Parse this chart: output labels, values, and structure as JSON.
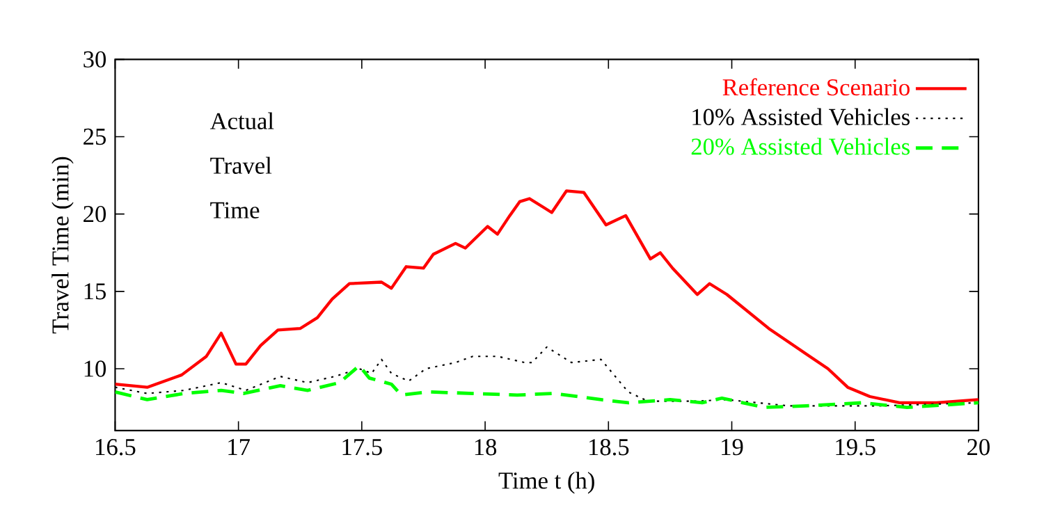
{
  "chart_data": {
    "type": "line",
    "xlabel": "Time t (h)",
    "ylabel": "Travel Time (min)",
    "annotations": [
      "Actual Travel Time"
    ],
    "xlim": [
      16.5,
      20
    ],
    "ylim": [
      6,
      30
    ],
    "xticks": [
      16.5,
      17,
      17.5,
      18,
      18.5,
      19,
      19.5,
      20
    ],
    "yticks": [
      10,
      15,
      20,
      25,
      30
    ],
    "grid": false,
    "legend": "top right",
    "marker": "none",
    "series": [
      {
        "name": "Reference Scenario",
        "color": "#ff0000",
        "line_style": "solid",
        "x": [
          16.5,
          16.63,
          16.77,
          16.87,
          16.93,
          16.99,
          17.03,
          17.09,
          17.16,
          17.25,
          17.32,
          17.38,
          17.45,
          17.58,
          17.62,
          17.68,
          17.75,
          17.79,
          17.88,
          17.92,
          18.01,
          18.05,
          18.1,
          18.14,
          18.18,
          18.24,
          18.27,
          18.33,
          18.4,
          18.49,
          18.57,
          18.67,
          18.71,
          18.76,
          18.86,
          18.91,
          18.98,
          19.15,
          19.26,
          19.39,
          19.47,
          19.56,
          19.68,
          19.83,
          20.0
        ],
        "values": [
          9.0,
          8.8,
          9.6,
          10.8,
          12.3,
          10.3,
          10.3,
          11.5,
          12.5,
          12.6,
          13.3,
          14.5,
          15.5,
          15.6,
          15.2,
          16.6,
          16.5,
          17.4,
          18.1,
          17.8,
          19.2,
          18.7,
          19.9,
          20.8,
          21.0,
          20.4,
          20.1,
          21.5,
          21.4,
          19.3,
          19.9,
          17.1,
          17.5,
          16.5,
          14.8,
          15.5,
          14.8,
          12.6,
          11.4,
          10.0,
          8.8,
          8.2,
          7.8,
          7.8,
          8.0
        ]
      },
      {
        "name": "10% Assisted Vehicles",
        "color": "#000000",
        "line_style": "dotted",
        "x": [
          16.5,
          16.63,
          16.78,
          16.93,
          17.03,
          17.17,
          17.28,
          17.39,
          17.49,
          17.54,
          17.58,
          17.62,
          17.69,
          17.76,
          17.88,
          17.95,
          18.05,
          18.16,
          18.19,
          18.25,
          18.35,
          18.47,
          18.58,
          18.66,
          18.85,
          18.98,
          19.23,
          19.6,
          20.0
        ],
        "values": [
          8.8,
          8.4,
          8.6,
          9.1,
          8.6,
          9.5,
          9.1,
          9.5,
          10.0,
          9.7,
          10.6,
          9.7,
          9.2,
          10.0,
          10.4,
          10.8,
          10.8,
          10.4,
          10.4,
          11.4,
          10.4,
          10.6,
          8.5,
          7.9,
          7.9,
          8.0,
          7.6,
          7.6,
          7.8
        ]
      },
      {
        "name": "20% Assisted Vehicles",
        "color": "#00ff00",
        "line_style": "dashed",
        "x": [
          16.5,
          16.63,
          16.78,
          16.93,
          17.02,
          17.17,
          17.28,
          17.41,
          17.49,
          17.53,
          17.62,
          17.66,
          17.77,
          17.95,
          18.13,
          18.28,
          18.47,
          18.58,
          18.75,
          18.88,
          18.96,
          19.13,
          19.3,
          19.53,
          19.71,
          20.0
        ],
        "values": [
          8.5,
          8.0,
          8.4,
          8.6,
          8.4,
          8.9,
          8.6,
          9.1,
          10.2,
          9.4,
          9.0,
          8.3,
          8.5,
          8.4,
          8.3,
          8.4,
          8.0,
          7.8,
          8.0,
          7.8,
          8.1,
          7.5,
          7.6,
          7.8,
          7.5,
          7.8
        ]
      }
    ]
  }
}
